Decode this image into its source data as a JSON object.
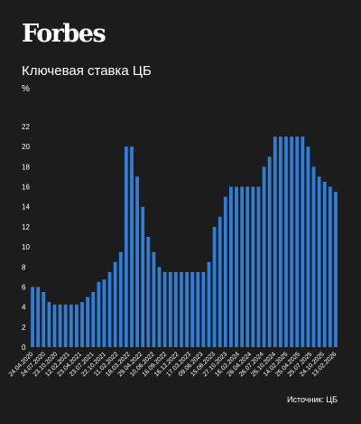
{
  "brand": "Forbes",
  "chart_title": "Ключевая ставка ЦБ",
  "unit_label": "%",
  "source": "Источник: ЦБ",
  "colors": {
    "background": "#1c1c1c",
    "bar": "#2f7fd9",
    "text": "#ffffff"
  },
  "chart_data": {
    "type": "bar",
    "title": "Ключевая ставка ЦБ",
    "ylabel": "%",
    "ylim": [
      0,
      22
    ],
    "yticks": [
      0,
      2,
      4,
      6,
      8,
      10,
      12,
      14,
      16,
      18,
      20,
      22
    ],
    "grid": false,
    "x_tick_labels": [
      "24.04.2020",
      "24.07.2020",
      "23.10.2020",
      "12.02.2021",
      "23.04.2021",
      "23.07.2021",
      "22.10.2021",
      "11.02.2022",
      "18.03.2022",
      "29.04.2022",
      "10.06.2022",
      "16.09.2022",
      "16.12.2022",
      "17.03.2023",
      "09.06.2023",
      "15.08.2023",
      "27.10.2023",
      "16.02.2024",
      "26.04.2024",
      "26.07.2024",
      "25.10.2024",
      "14.02.2025",
      "25.04.2025",
      "25.07.2025",
      "24.10.2025",
      "13.02.2026"
    ],
    "values": [
      6,
      6,
      5.5,
      4.5,
      4.25,
      4.25,
      4.25,
      4.25,
      4.25,
      4.5,
      5,
      5.5,
      6.5,
      6.75,
      7.5,
      8.5,
      9.5,
      20,
      20,
      17,
      14,
      11,
      9.5,
      8,
      7.5,
      7.5,
      7.5,
      7.5,
      7.5,
      7.5,
      7.5,
      7.5,
      8.5,
      12,
      13,
      15,
      16,
      16,
      16,
      16,
      16,
      16,
      18,
      19,
      21,
      21,
      21,
      21,
      21,
      21,
      20,
      18,
      17,
      16.5,
      16,
      15.5
    ]
  }
}
